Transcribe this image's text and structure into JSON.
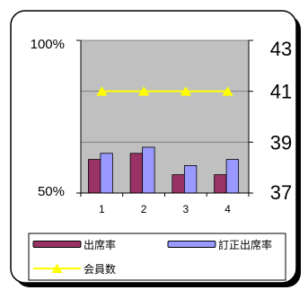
{
  "chart_data": {
    "type": "bar",
    "categories": [
      "1",
      "2",
      "3",
      "4"
    ],
    "series": [
      {
        "name": "出席率",
        "type": "bar",
        "axis": "left",
        "color": "#993366",
        "values": [
          61,
          63,
          56,
          56
        ]
      },
      {
        "name": "訂正出席率",
        "type": "bar",
        "axis": "left",
        "color": "#9999FF",
        "values": [
          63,
          65,
          59,
          61
        ]
      },
      {
        "name": "会員数",
        "type": "line",
        "axis": "right",
        "color": "#FFFF00",
        "marker": "triangle",
        "values": [
          41,
          41,
          41,
          41
        ]
      }
    ],
    "y_left": {
      "range": [
        50,
        100
      ],
      "ticks": [
        {
          "value": 100,
          "label": "100%"
        },
        {
          "value": 50,
          "label": "50%"
        }
      ]
    },
    "y_right": {
      "range": [
        37,
        43
      ],
      "ticks": [
        {
          "value": 43,
          "label": "43"
        },
        {
          "value": 41,
          "label": "41"
        },
        {
          "value": 39,
          "label": "39"
        },
        {
          "value": 37,
          "label": "37"
        }
      ]
    },
    "grid": true,
    "legend": "bottom",
    "plot_background": "#C0C0C0"
  }
}
